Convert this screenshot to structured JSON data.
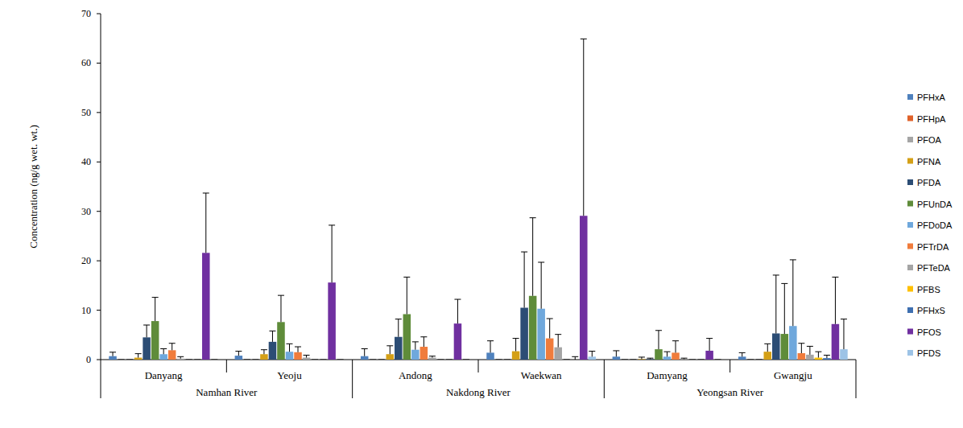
{
  "chart_data": {
    "type": "bar",
    "y_label": "Concentration (ng/g wet. wt.)",
    "categories": [
      "Danyang",
      "Yeoju",
      "Andong",
      "Waekwan",
      "Damyang",
      "Gwangju"
    ],
    "groups": [
      {
        "label": "Namhan River",
        "span": 2
      },
      {
        "label": "Nakdong River",
        "span": 2
      },
      {
        "label": "Yeongsan River",
        "span": 2
      }
    ],
    "ylim": [
      0,
      70
    ],
    "yticks": [
      0,
      10,
      20,
      30,
      40,
      50,
      60,
      70
    ],
    "grid": false,
    "legend": "right",
    "series": [
      {
        "name": "PFHxA",
        "color": "#4f81bd",
        "values": [
          0.7,
          0.8,
          0.7,
          1.4,
          0.6,
          0.6
        ],
        "errors": [
          0.8,
          0.9,
          1.5,
          2.4,
          1.2,
          0.8
        ]
      },
      {
        "name": "PFHpA",
        "color": "#e0622a",
        "values": [
          0,
          0,
          0,
          0,
          0,
          0
        ],
        "errors": [
          0,
          0,
          0,
          0,
          0,
          0
        ]
      },
      {
        "name": "PFOA",
        "color": "#a5a5a5",
        "values": [
          0,
          0,
          0,
          0,
          0,
          0
        ],
        "errors": [
          0,
          0,
          0,
          0,
          0,
          0
        ]
      },
      {
        "name": "PFNA",
        "color": "#d4a017",
        "values": [
          0.4,
          1.1,
          1.1,
          1.7,
          0.1,
          1.6
        ],
        "errors": [
          0.8,
          0.9,
          1.7,
          2.6,
          0.4,
          1.6
        ]
      },
      {
        "name": "PFDA",
        "color": "#2c4d75",
        "values": [
          4.5,
          3.6,
          4.6,
          10.5,
          0.1,
          5.3
        ],
        "errors": [
          2.5,
          2.2,
          3.6,
          11.3,
          0.2,
          11.8
        ]
      },
      {
        "name": "PFUnDA",
        "color": "#5f8c3a",
        "values": [
          7.8,
          7.6,
          9.2,
          12.9,
          2.1,
          5.2
        ],
        "errors": [
          4.8,
          5.4,
          7.5,
          15.8,
          3.8,
          10.2
        ]
      },
      {
        "name": "PFDoDA",
        "color": "#6fa8dc",
        "values": [
          1.1,
          1.6,
          2.0,
          10.3,
          0.6,
          6.8
        ],
        "errors": [
          1.1,
          1.6,
          1.6,
          9.4,
          1.0,
          13.4
        ]
      },
      {
        "name": "PFTrDA",
        "color": "#f07c3c",
        "values": [
          1.9,
          1.5,
          2.6,
          4.3,
          1.4,
          1.3
        ],
        "errors": [
          1.4,
          1.1,
          2.0,
          4.0,
          2.4,
          2.0
        ]
      },
      {
        "name": "PFTeDA",
        "color": "#a5a5a5",
        "values": [
          0.2,
          0.4,
          0.4,
          2.5,
          0.1,
          1.0
        ],
        "errors": [
          0.4,
          0.5,
          0.3,
          2.6,
          0.2,
          1.7
        ]
      },
      {
        "name": "PFBS",
        "color": "#ffc000",
        "values": [
          0,
          0,
          0,
          0,
          0,
          0.4
        ],
        "errors": [
          0,
          0,
          0,
          0,
          0,
          1.2
        ]
      },
      {
        "name": "PFHxS",
        "color": "#3e6fb0",
        "values": [
          0,
          0,
          0,
          0,
          0,
          0.3
        ],
        "errors": [
          0,
          0,
          0,
          0.6,
          0,
          0.6
        ]
      },
      {
        "name": "PFOS",
        "color": "#7030a0",
        "values": [
          21.6,
          15.6,
          7.3,
          29.1,
          1.8,
          7.2
        ],
        "errors": [
          12.1,
          11.6,
          4.9,
          35.8,
          2.5,
          9.5
        ]
      },
      {
        "name": "PFDS",
        "color": "#9dc3e6",
        "values": [
          0,
          0,
          0,
          0.6,
          0,
          2.1
        ],
        "errors": [
          0,
          0,
          0,
          1.1,
          0,
          6.1
        ]
      }
    ]
  }
}
